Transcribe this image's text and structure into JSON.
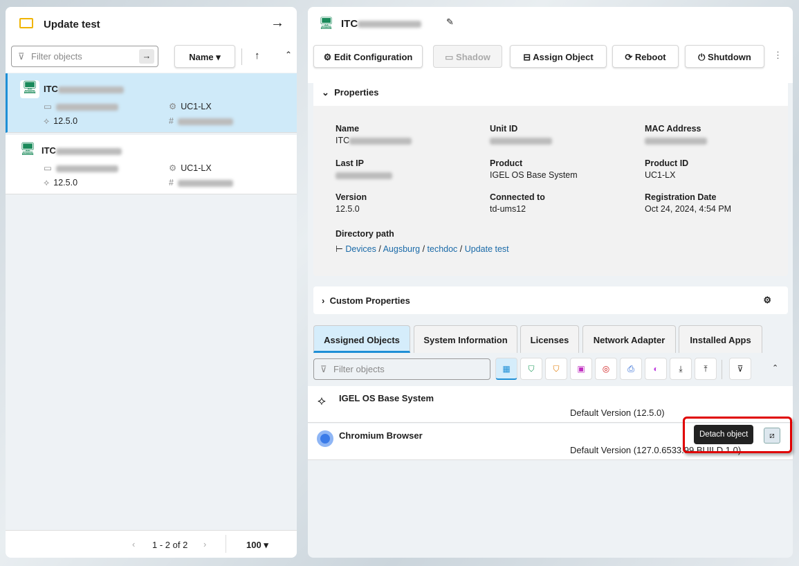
{
  "left": {
    "title": "Update test",
    "filter_placeholder": "Filter objects",
    "sort_label": "Name",
    "items": [
      {
        "name": "ITC",
        "product_id": "UC1-LX",
        "version": "12.5.0",
        "selected": true
      },
      {
        "name": "ITC",
        "product_id": "UC1-LX",
        "version": "12.5.0",
        "selected": false
      }
    ],
    "pager": {
      "range": "1 - 2 of 2",
      "page_size": "100"
    }
  },
  "right": {
    "title": "ITC",
    "toolbar": {
      "edit": "Edit Configuration",
      "shadow": "Shadow",
      "assign": "Assign Object",
      "reboot": "Reboot",
      "shutdown": "Shutdown"
    },
    "properties": {
      "header": "Properties",
      "name_label": "Name",
      "name_value": "ITC",
      "unit_id_label": "Unit ID",
      "mac_label": "MAC Address",
      "last_ip_label": "Last IP",
      "product_label": "Product",
      "product_value": "IGEL OS Base System",
      "product_id_label": "Product ID",
      "product_id_value": "UC1-LX",
      "version_label": "Version",
      "version_value": "12.5.0",
      "connected_label": "Connected to",
      "connected_value": "td-ums12",
      "reg_label": "Registration Date",
      "reg_value": "Oct 24, 2024, 4:54 PM",
      "dir_label": "Directory path",
      "dir_path": [
        "Devices",
        "Augsburg",
        "techdoc",
        "Update test"
      ]
    },
    "custom_properties": "Custom Properties",
    "tabs": [
      "Assigned Objects",
      "System Information",
      "Licenses",
      "Network Adapter",
      "Installed Apps"
    ],
    "active_tab": "Assigned Objects",
    "filter_placeholder": "Filter objects",
    "assigned": [
      {
        "name": "IGEL OS Base System",
        "version": "Default Version (12.5.0)"
      },
      {
        "name": "Chromium Browser",
        "version": "Default Version (127.0.6533.99 BUILD 1.0)"
      }
    ],
    "tooltip": "Detach object",
    "accent": "#1e8fd6",
    "highlight": "#e00000"
  }
}
